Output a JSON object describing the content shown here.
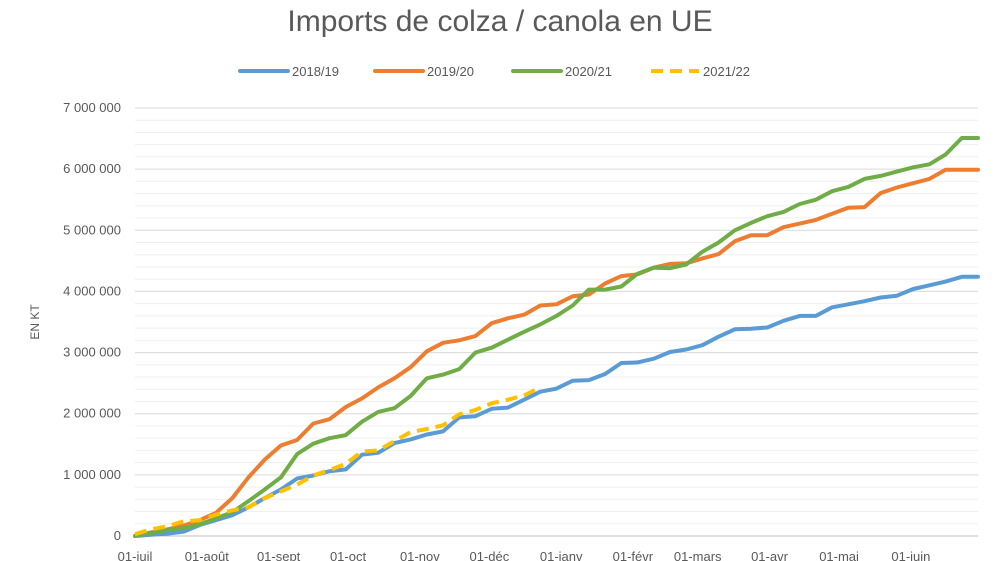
{
  "chart_data": {
    "type": "line",
    "title": "Imports de colza / canola en UE",
    "ylabel": "EN KT",
    "xlabel": "",
    "ylim": [
      0,
      7000000
    ],
    "y_ticks": [
      "0",
      "1 000 000",
      "2 000 000",
      "3 000 000",
      "4 000 000",
      "5 000 000",
      "6 000 000",
      "7 000 000"
    ],
    "y_tick_values": [
      0,
      1000000,
      2000000,
      3000000,
      4000000,
      5000000,
      6000000,
      7000000
    ],
    "x_labels": [
      "01-juil",
      "01-août",
      "01-sept",
      "01-oct",
      "01-nov",
      "01-déc",
      "01-janv",
      "01-févr",
      "01-mars",
      "01-avr",
      "01-mai",
      "01-juin"
    ],
    "x_unit": "week index (0 = 01-juil)",
    "x_label_weeks": [
      0,
      4.43,
      8.86,
      13.14,
      17.57,
      21.86,
      26.29,
      30.71,
      34.71,
      39.14,
      43.43,
      47.86
    ],
    "x_max_week": 52,
    "grid": true,
    "legend_position": "top",
    "series": [
      {
        "name": "2018/19",
        "color": "#5b9bd5",
        "dash": false,
        "points": [
          [
            0,
            0
          ],
          [
            1,
            20000
          ],
          [
            2,
            40000
          ],
          [
            3,
            70000
          ],
          [
            4,
            180000
          ],
          [
            5,
            260000
          ],
          [
            6,
            340000
          ],
          [
            7,
            470000
          ],
          [
            8,
            620000
          ],
          [
            9,
            760000
          ],
          [
            10,
            940000
          ],
          [
            11,
            990000
          ],
          [
            12,
            1060000
          ],
          [
            13,
            1090000
          ],
          [
            14,
            1330000
          ],
          [
            15,
            1360000
          ],
          [
            16,
            1520000
          ],
          [
            17,
            1580000
          ],
          [
            18,
            1660000
          ],
          [
            19,
            1710000
          ],
          [
            20,
            1940000
          ],
          [
            21,
            1960000
          ],
          [
            22,
            2080000
          ],
          [
            23,
            2100000
          ],
          [
            24,
            2230000
          ],
          [
            25,
            2360000
          ],
          [
            26,
            2410000
          ],
          [
            27,
            2540000
          ],
          [
            28,
            2550000
          ],
          [
            29,
            2650000
          ],
          [
            30,
            2830000
          ],
          [
            31,
            2840000
          ],
          [
            32,
            2900000
          ],
          [
            33,
            3010000
          ],
          [
            34,
            3050000
          ],
          [
            35,
            3120000
          ],
          [
            36,
            3260000
          ],
          [
            37,
            3380000
          ],
          [
            38,
            3390000
          ],
          [
            39,
            3410000
          ],
          [
            40,
            3520000
          ],
          [
            41,
            3600000
          ],
          [
            42,
            3600000
          ],
          [
            43,
            3740000
          ],
          [
            44,
            3790000
          ],
          [
            45,
            3840000
          ],
          [
            46,
            3900000
          ],
          [
            47,
            3930000
          ],
          [
            48,
            4040000
          ],
          [
            49,
            4100000
          ],
          [
            50,
            4160000
          ],
          [
            51,
            4240000
          ],
          [
            52,
            4240000
          ]
        ]
      },
      {
        "name": "2019/20",
        "color": "#ed7d31",
        "dash": false,
        "points": [
          [
            0,
            0
          ],
          [
            1,
            60000
          ],
          [
            2,
            110000
          ],
          [
            3,
            170000
          ],
          [
            4,
            260000
          ],
          [
            5,
            380000
          ],
          [
            6,
            620000
          ],
          [
            7,
            960000
          ],
          [
            8,
            1250000
          ],
          [
            9,
            1480000
          ],
          [
            10,
            1570000
          ],
          [
            11,
            1840000
          ],
          [
            12,
            1910000
          ],
          [
            13,
            2110000
          ],
          [
            14,
            2250000
          ],
          [
            15,
            2430000
          ],
          [
            16,
            2580000
          ],
          [
            17,
            2760000
          ],
          [
            18,
            3020000
          ],
          [
            19,
            3160000
          ],
          [
            20,
            3200000
          ],
          [
            21,
            3270000
          ],
          [
            22,
            3480000
          ],
          [
            23,
            3560000
          ],
          [
            24,
            3620000
          ],
          [
            25,
            3770000
          ],
          [
            26,
            3790000
          ],
          [
            27,
            3920000
          ],
          [
            28,
            3950000
          ],
          [
            29,
            4130000
          ],
          [
            30,
            4250000
          ],
          [
            31,
            4280000
          ],
          [
            32,
            4390000
          ],
          [
            33,
            4450000
          ],
          [
            34,
            4460000
          ],
          [
            35,
            4540000
          ],
          [
            36,
            4610000
          ],
          [
            37,
            4820000
          ],
          [
            38,
            4920000
          ],
          [
            39,
            4920000
          ],
          [
            40,
            5050000
          ],
          [
            41,
            5110000
          ],
          [
            42,
            5170000
          ],
          [
            43,
            5270000
          ],
          [
            44,
            5370000
          ],
          [
            45,
            5380000
          ],
          [
            46,
            5610000
          ],
          [
            47,
            5700000
          ],
          [
            48,
            5770000
          ],
          [
            49,
            5840000
          ],
          [
            50,
            5990000
          ],
          [
            51,
            5990000
          ],
          [
            52,
            5990000
          ]
        ]
      },
      {
        "name": "2020/21",
        "color": "#70ad47",
        "dash": false,
        "points": [
          [
            0,
            0
          ],
          [
            1,
            50000
          ],
          [
            2,
            100000
          ],
          [
            3,
            130000
          ],
          [
            4,
            190000
          ],
          [
            5,
            290000
          ],
          [
            6,
            390000
          ],
          [
            7,
            570000
          ],
          [
            8,
            760000
          ],
          [
            9,
            960000
          ],
          [
            10,
            1340000
          ],
          [
            11,
            1510000
          ],
          [
            12,
            1600000
          ],
          [
            13,
            1650000
          ],
          [
            14,
            1870000
          ],
          [
            15,
            2030000
          ],
          [
            16,
            2090000
          ],
          [
            17,
            2290000
          ],
          [
            18,
            2580000
          ],
          [
            19,
            2640000
          ],
          [
            20,
            2730000
          ],
          [
            21,
            3000000
          ],
          [
            22,
            3080000
          ],
          [
            23,
            3210000
          ],
          [
            24,
            3340000
          ],
          [
            25,
            3460000
          ],
          [
            26,
            3600000
          ],
          [
            27,
            3770000
          ],
          [
            28,
            4030000
          ],
          [
            29,
            4030000
          ],
          [
            30,
            4080000
          ],
          [
            31,
            4290000
          ],
          [
            32,
            4390000
          ],
          [
            33,
            4380000
          ],
          [
            34,
            4440000
          ],
          [
            35,
            4650000
          ],
          [
            36,
            4800000
          ],
          [
            37,
            5000000
          ],
          [
            38,
            5120000
          ],
          [
            39,
            5230000
          ],
          [
            40,
            5300000
          ],
          [
            41,
            5430000
          ],
          [
            42,
            5500000
          ],
          [
            43,
            5640000
          ],
          [
            44,
            5710000
          ],
          [
            45,
            5840000
          ],
          [
            46,
            5890000
          ],
          [
            47,
            5960000
          ],
          [
            48,
            6030000
          ],
          [
            49,
            6080000
          ],
          [
            50,
            6240000
          ],
          [
            51,
            6510000
          ],
          [
            52,
            6510000
          ]
        ]
      },
      {
        "name": "2021/22",
        "color": "#ffc000",
        "dash": true,
        "points": [
          [
            0,
            30000
          ],
          [
            1,
            110000
          ],
          [
            2,
            160000
          ],
          [
            3,
            240000
          ],
          [
            4,
            260000
          ],
          [
            5,
            350000
          ],
          [
            6,
            420000
          ],
          [
            7,
            470000
          ],
          [
            8,
            620000
          ],
          [
            9,
            730000
          ],
          [
            10,
            840000
          ],
          [
            11,
            990000
          ],
          [
            12,
            1080000
          ],
          [
            13,
            1180000
          ],
          [
            14,
            1380000
          ],
          [
            15,
            1400000
          ],
          [
            16,
            1550000
          ],
          [
            17,
            1700000
          ],
          [
            18,
            1750000
          ],
          [
            19,
            1810000
          ],
          [
            20,
            1990000
          ],
          [
            21,
            2060000
          ],
          [
            22,
            2170000
          ],
          [
            23,
            2230000
          ],
          [
            24,
            2300000
          ],
          [
            25,
            2430000
          ]
        ]
      }
    ]
  }
}
